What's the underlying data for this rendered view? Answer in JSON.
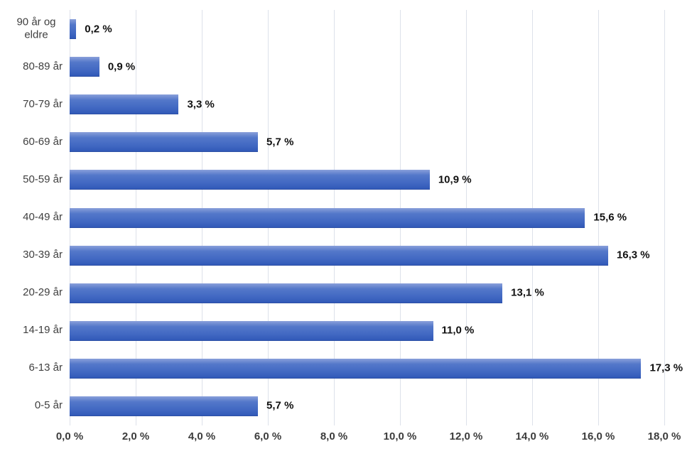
{
  "chart_data": {
    "type": "bar",
    "orientation": "horizontal",
    "title": "",
    "xlabel": "",
    "ylabel": "",
    "categories": [
      "90 år og eldre",
      "80-89 år",
      "70-79 år",
      "60-69 år",
      "50-59 år",
      "40-49 år",
      "30-39 år",
      "20-29 år",
      "14-19 år",
      "6-13 år",
      "0-5 år"
    ],
    "values": [
      0.2,
      0.9,
      3.3,
      5.7,
      10.9,
      15.6,
      16.3,
      13.1,
      11.0,
      17.3,
      5.7
    ],
    "data_labels": [
      "0,2 %",
      "0,9 %",
      "3,3 %",
      "5,7 %",
      "10,9 %",
      "15,6 %",
      "16,3 %",
      "13,1 %",
      "11,0 %",
      "17,3 %",
      "5,7 %"
    ],
    "xlim": [
      0,
      18
    ],
    "x_tick_values": [
      0,
      2,
      4,
      6,
      8,
      10,
      12,
      14,
      16,
      18
    ],
    "x_ticks": [
      "0,0 %",
      "2,0 %",
      "4,0 %",
      "6,0 %",
      "8,0 %",
      "10,0 %",
      "12,0 %",
      "14,0 %",
      "16,0 %",
      "18,0 %"
    ],
    "grid": true,
    "legend": "none",
    "colors": {
      "bar_top": "#8aa0da",
      "bar_mid": "#4168c2",
      "bar_bottom": "#3159b8",
      "bar_edge": "#2d50a5",
      "gridline": "#dde1ea",
      "category_label": "#3f3f3f",
      "value_label": "#111111",
      "tick_label": "#3c3c3c",
      "background": "#ffffff"
    }
  }
}
